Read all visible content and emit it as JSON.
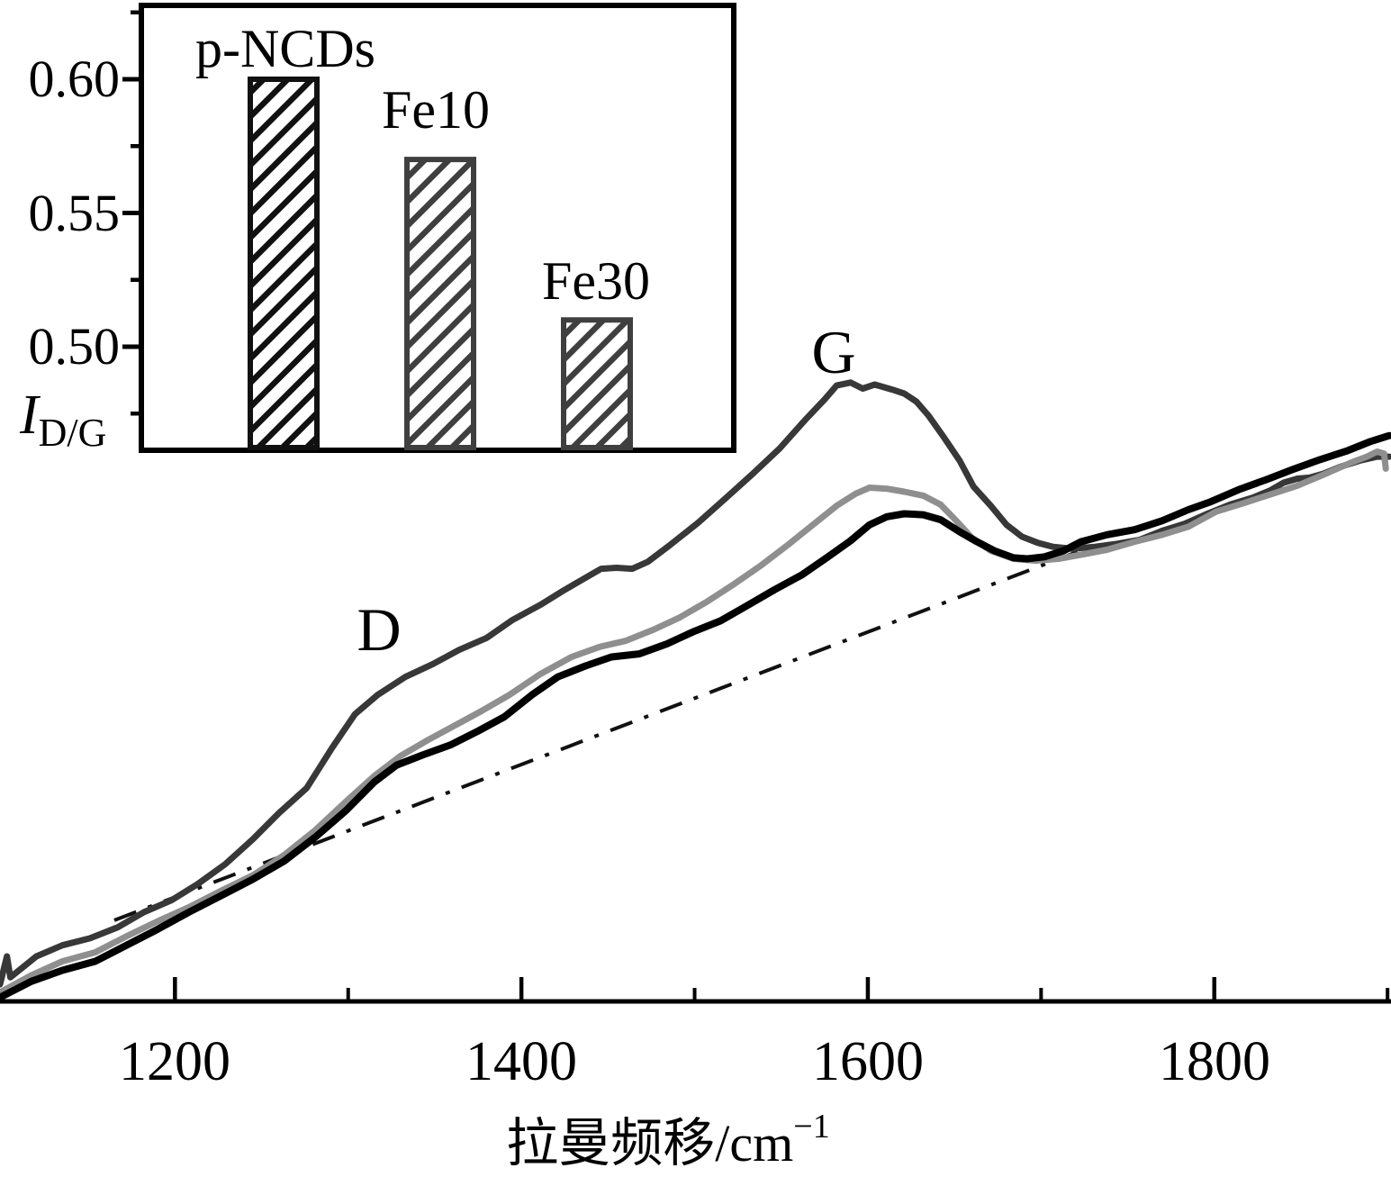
{
  "figure": {
    "description": "Raman spectra of three carbon-dot samples with dash-dot baseline and inset bar chart of D-to-G band intensity ratios",
    "background": "#ffffff",
    "axis_color": "#000000"
  },
  "chart_data": [
    {
      "type": "line",
      "title": "",
      "xlabel": {
        "text": "拉曼频移/cm",
        "sup": "−1"
      },
      "ylabel": "",
      "y_units": "relative intensity (arbitrary units, 0–100 read from plot)",
      "xlim": [
        1099,
        1902
      ],
      "grid": false,
      "legend_position": "none",
      "xticks": [
        {
          "value": 1200,
          "label": "1200"
        },
        {
          "value": 1400,
          "label": "1400"
        },
        {
          "value": 1600,
          "label": "1600"
        },
        {
          "value": 1800,
          "label": "1800"
        }
      ],
      "xminor": [
        1300,
        1500,
        1700,
        1900
      ],
      "annotations": [
        {
          "text": "D",
          "x": 1317,
          "y": 37.0
        },
        {
          "text": "G",
          "x": 1580,
          "y": 64.8
        }
      ],
      "series": [
        {
          "name": "curve-dark-gray",
          "color": "#383838",
          "width": 7,
          "points": [
            [
              1099,
              1.7
            ],
            [
              1103,
              4.5
            ],
            [
              1105,
              2.4
            ],
            [
              1120,
              4.5
            ],
            [
              1135,
              5.6
            ],
            [
              1151,
              6.3
            ],
            [
              1167,
              7.4
            ],
            [
              1182,
              8.9
            ],
            [
              1198,
              10.1
            ],
            [
              1213,
              11.7
            ],
            [
              1229,
              13.7
            ],
            [
              1245,
              16.2
            ],
            [
              1260,
              18.8
            ],
            [
              1276,
              21.3
            ],
            [
              1291,
              25.4
            ],
            [
              1304,
              28.7
            ],
            [
              1317,
              30.6
            ],
            [
              1333,
              32.4
            ],
            [
              1349,
              33.7
            ],
            [
              1364,
              35.1
            ],
            [
              1380,
              36.3
            ],
            [
              1395,
              38.1
            ],
            [
              1411,
              39.6
            ],
            [
              1424,
              41.0
            ],
            [
              1437,
              42.3
            ],
            [
              1446,
              43.2
            ],
            [
              1455,
              43.3
            ],
            [
              1464,
              43.2
            ],
            [
              1473,
              43.9
            ],
            [
              1486,
              45.6
            ],
            [
              1502,
              47.8
            ],
            [
              1517,
              50.1
            ],
            [
              1533,
              52.6
            ],
            [
              1549,
              55.2
            ],
            [
              1564,
              58.1
            ],
            [
              1575,
              60.1
            ],
            [
              1582,
              61.5
            ],
            [
              1590,
              61.8
            ],
            [
              1597,
              61.2
            ],
            [
              1604,
              61.6
            ],
            [
              1614,
              61.1
            ],
            [
              1621,
              60.7
            ],
            [
              1628,
              59.9
            ],
            [
              1635,
              58.5
            ],
            [
              1644,
              56.3
            ],
            [
              1653,
              54.0
            ],
            [
              1661,
              51.4
            ],
            [
              1671,
              49.5
            ],
            [
              1680,
              47.6
            ],
            [
              1689,
              46.4
            ],
            [
              1698,
              45.8
            ],
            [
              1707,
              45.4
            ],
            [
              1718,
              45.2
            ],
            [
              1731,
              45.4
            ],
            [
              1744,
              45.7
            ],
            [
              1757,
              46.1
            ],
            [
              1770,
              47.0
            ],
            [
              1783,
              47.7
            ],
            [
              1796,
              48.7
            ],
            [
              1809,
              49.6
            ],
            [
              1822,
              50.3
            ],
            [
              1832,
              51.0
            ],
            [
              1840,
              51.8
            ],
            [
              1848,
              52.2
            ],
            [
              1855,
              52.3
            ],
            [
              1863,
              52.7
            ],
            [
              1873,
              53.4
            ],
            [
              1884,
              54.0
            ],
            [
              1894,
              54.4
            ],
            [
              1901,
              54.4
            ]
          ]
        },
        {
          "name": "curve-gray",
          "color": "#8f8f8f",
          "width": 7,
          "points": [
            [
              1099,
              0.9
            ],
            [
              1117,
              2.6
            ],
            [
              1135,
              4.0
            ],
            [
              1154,
              4.9
            ],
            [
              1172,
              6.5
            ],
            [
              1190,
              8.0
            ],
            [
              1208,
              9.4
            ],
            [
              1226,
              11.0
            ],
            [
              1245,
              12.6
            ],
            [
              1263,
              14.6
            ],
            [
              1281,
              17.1
            ],
            [
              1299,
              20.0
            ],
            [
              1315,
              22.5
            ],
            [
              1330,
              24.5
            ],
            [
              1346,
              26.1
            ],
            [
              1361,
              27.5
            ],
            [
              1377,
              29.0
            ],
            [
              1393,
              30.6
            ],
            [
              1411,
              32.7
            ],
            [
              1429,
              34.4
            ],
            [
              1445,
              35.4
            ],
            [
              1460,
              36.0
            ],
            [
              1476,
              37.1
            ],
            [
              1491,
              38.3
            ],
            [
              1507,
              39.9
            ],
            [
              1523,
              41.7
            ],
            [
              1538,
              43.5
            ],
            [
              1554,
              45.6
            ],
            [
              1569,
              47.7
            ],
            [
              1582,
              49.5
            ],
            [
              1593,
              50.7
            ],
            [
              1601,
              51.3
            ],
            [
              1611,
              51.2
            ],
            [
              1621,
              50.9
            ],
            [
              1632,
              50.5
            ],
            [
              1642,
              49.6
            ],
            [
              1651,
              48.0
            ],
            [
              1660,
              46.3
            ],
            [
              1671,
              45.0
            ],
            [
              1684,
              44.2
            ],
            [
              1697,
              44.0
            ],
            [
              1710,
              44.2
            ],
            [
              1723,
              44.6
            ],
            [
              1738,
              45.1
            ],
            [
              1754,
              45.9
            ],
            [
              1770,
              46.6
            ],
            [
              1785,
              47.4
            ],
            [
              1801,
              48.9
            ],
            [
              1816,
              49.7
            ],
            [
              1832,
              50.6
            ],
            [
              1848,
              51.5
            ],
            [
              1863,
              52.6
            ],
            [
              1879,
              53.8
            ],
            [
              1888,
              54.4
            ],
            [
              1894,
              54.9
            ],
            [
              1898,
              54.7
            ],
            [
              1899,
              53.2
            ]
          ]
        },
        {
          "name": "curve-black",
          "color": "#000000",
          "width": 8,
          "points": [
            [
              1099,
              0.4
            ],
            [
              1117,
              2.0
            ],
            [
              1135,
              3.1
            ],
            [
              1154,
              4.0
            ],
            [
              1172,
              5.6
            ],
            [
              1190,
              7.2
            ],
            [
              1208,
              8.9
            ],
            [
              1226,
              10.5
            ],
            [
              1245,
              12.2
            ],
            [
              1263,
              14.0
            ],
            [
              1281,
              16.4
            ],
            [
              1299,
              19.1
            ],
            [
              1315,
              21.9
            ],
            [
              1328,
              23.6
            ],
            [
              1343,
              24.6
            ],
            [
              1359,
              25.6
            ],
            [
              1375,
              27.0
            ],
            [
              1390,
              28.4
            ],
            [
              1406,
              30.6
            ],
            [
              1421,
              32.4
            ],
            [
              1437,
              33.5
            ],
            [
              1452,
              34.4
            ],
            [
              1468,
              34.7
            ],
            [
              1484,
              35.7
            ],
            [
              1499,
              36.9
            ],
            [
              1515,
              38.0
            ],
            [
              1530,
              39.5
            ],
            [
              1546,
              41.1
            ],
            [
              1562,
              42.6
            ],
            [
              1577,
              44.4
            ],
            [
              1590,
              46.0
            ],
            [
              1601,
              47.6
            ],
            [
              1611,
              48.4
            ],
            [
              1621,
              48.7
            ],
            [
              1632,
              48.6
            ],
            [
              1642,
              48.1
            ],
            [
              1653,
              46.9
            ],
            [
              1663,
              45.9
            ],
            [
              1673,
              45.0
            ],
            [
              1684,
              44.3
            ],
            [
              1692,
              44.2
            ],
            [
              1702,
              44.4
            ],
            [
              1713,
              45.0
            ],
            [
              1723,
              45.9
            ],
            [
              1738,
              46.6
            ],
            [
              1754,
              47.1
            ],
            [
              1770,
              48.0
            ],
            [
              1785,
              49.1
            ],
            [
              1798,
              49.9
            ],
            [
              1814,
              51.1
            ],
            [
              1830,
              52.1
            ],
            [
              1845,
              53.1
            ],
            [
              1861,
              54.1
            ],
            [
              1877,
              55.0
            ],
            [
              1890,
              55.9
            ],
            [
              1901,
              56.5
            ]
          ]
        }
      ],
      "baseline": {
        "name": "dash-dot-baseline",
        "color": "#111111",
        "width": 4,
        "style": "dash-dot",
        "points": [
          [
            1165,
            8.1
          ],
          [
            1721,
            44.9
          ]
        ]
      }
    },
    {
      "type": "bar",
      "title": "",
      "categories": [
        "p-NCDs",
        "Fe10",
        "Fe30"
      ],
      "values": [
        0.6,
        0.57,
        0.51
      ],
      "ylabel": {
        "text": "I",
        "sub": "D/G"
      },
      "ylim": [
        0.46,
        0.632
      ],
      "yticks": [
        {
          "value": 0.6,
          "label": "0.60"
        },
        {
          "value": 0.55,
          "label": "0.55"
        },
        {
          "value": 0.5,
          "label": "0.50"
        }
      ],
      "yminor": [
        0.475,
        0.525,
        0.575,
        0.625
      ],
      "bar_style": "diagonal-hatch",
      "bar_colors": [
        "#111111",
        "#3f3f3f",
        "#3f3f3f"
      ],
      "legend_position": "none"
    }
  ]
}
